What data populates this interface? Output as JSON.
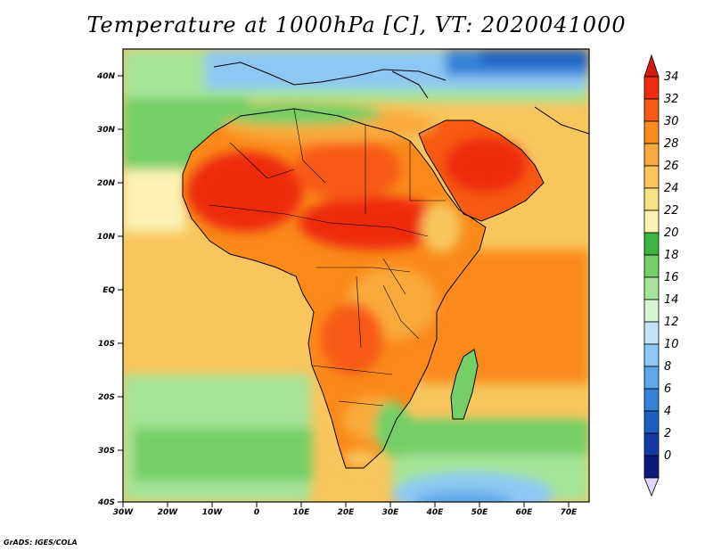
{
  "title": "Temperature at 1000hPa [C], VT: 2020041000",
  "credit": "GrADS: IGES/COLA",
  "lat_ticks": [
    "40N",
    "30N",
    "20N",
    "10N",
    "EQ",
    "10S",
    "20S",
    "30S",
    "40S"
  ],
  "lon_ticks": [
    "30W",
    "20W",
    "10W",
    "0",
    "10E",
    "20E",
    "30E",
    "40E",
    "50E",
    "60E",
    "70E"
  ],
  "colorbar": {
    "labels": [
      "34",
      "32",
      "30",
      "28",
      "26",
      "24",
      "22",
      "20",
      "18",
      "16",
      "14",
      "12",
      "10",
      "8",
      "6",
      "4",
      "2",
      "0"
    ],
    "colors": [
      "#ee2c10",
      "#f75a12",
      "#fa8a1a",
      "#f9aa3c",
      "#f8c65d",
      "#f9e286",
      "#fbf2b4",
      "#3db640",
      "#73cf66",
      "#a6e49a",
      "#d7f5d2",
      "#c2e4fb",
      "#8cc8f2",
      "#5ba9ea",
      "#3582d8",
      "#1c5fc4",
      "#1438a8",
      "#0c1a7e"
    ],
    "over_color": "#d5190c",
    "under_color": "#e0d6fb"
  }
}
